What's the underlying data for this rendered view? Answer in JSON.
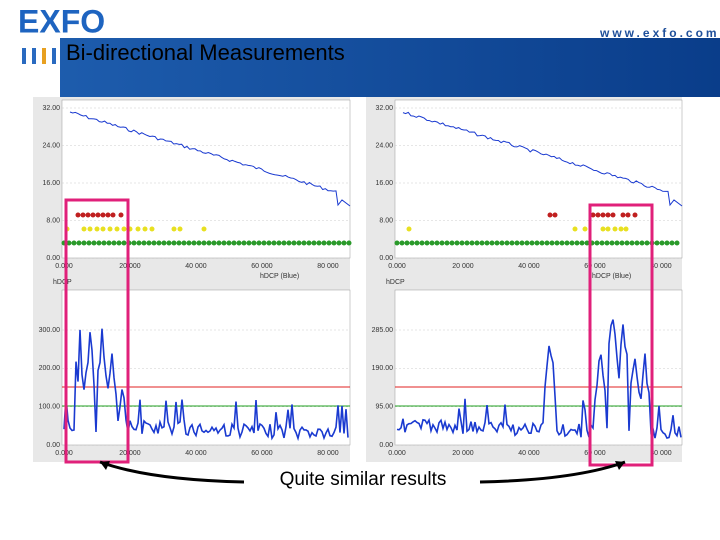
{
  "header": {
    "logo": "EXFO",
    "title": "Bi-directional Measurements",
    "url": "www.exfo.com"
  },
  "panels": [
    {
      "top": {
        "yticks": [
          "32.00",
          "24.00",
          "16.00",
          "8.00",
          "0.00"
        ],
        "xticks": [
          "0.000",
          "20 000",
          "40 000",
          "60 000",
          "80 000"
        ],
        "x_label": "hDCP (Blue)"
      },
      "bottom": {
        "label": "hDCP",
        "yticks": [
          "300.00",
          "200.00",
          "100.00",
          "0.00"
        ],
        "xticks": [
          "0.000",
          "20 000",
          "40 000",
          "60 000",
          "80 000"
        ]
      }
    },
    {
      "top": {
        "yticks": [
          "32.00",
          "24.00",
          "16.00",
          "8.00",
          "0.00"
        ],
        "xticks": [
          "0.000",
          "20 000",
          "40 000",
          "60 000",
          "80 000"
        ],
        "x_label": "hDCP (Blue)"
      },
      "bottom": {
        "label": "hDCP",
        "yticks": [
          "285.00",
          "190.00",
          "95.00",
          "0.00"
        ],
        "xticks": [
          "0.000",
          "20 000",
          "40 000",
          "60 000",
          "80 000"
        ]
      }
    }
  ],
  "caption": "Quite similar results"
}
